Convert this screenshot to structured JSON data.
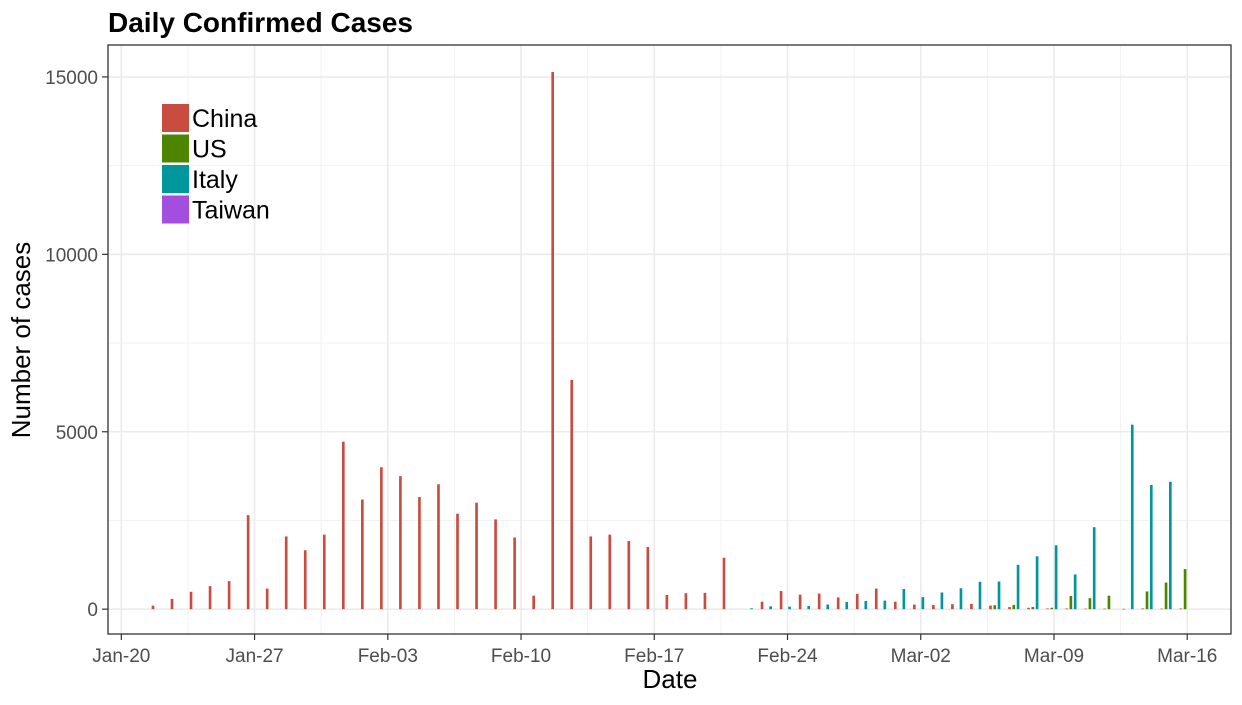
{
  "chart_data": {
    "type": "bar",
    "title": "Daily Confirmed Cases",
    "xlabel": "Date",
    "ylabel": "Number of cases",
    "x_axis": {
      "start": "2020-01-20",
      "end": "2020-03-16",
      "tick_labels": [
        "Jan-20",
        "Jan-27",
        "Feb-03",
        "Feb-10",
        "Feb-17",
        "Feb-24",
        "Mar-02",
        "Mar-09",
        "Mar-16"
      ]
    },
    "y_axis": {
      "ylim": [
        -700,
        15900
      ],
      "ticks": [
        0,
        5000,
        10000,
        15000
      ]
    },
    "grid": true,
    "legend": {
      "position": "top-left"
    },
    "series": [
      {
        "name": "China",
        "color": "#c94c40",
        "points": [
          [
            "2020-01-22",
            100
          ],
          [
            "2020-01-23",
            290
          ],
          [
            "2020-01-24",
            490
          ],
          [
            "2020-01-25",
            650
          ],
          [
            "2020-01-26",
            790
          ],
          [
            "2020-01-27",
            2650
          ],
          [
            "2020-01-28",
            580
          ],
          [
            "2020-01-29",
            2050
          ],
          [
            "2020-01-30",
            1660
          ],
          [
            "2020-01-31",
            2100
          ],
          [
            "2020-02-01",
            4720
          ],
          [
            "2020-02-02",
            3090
          ],
          [
            "2020-02-03",
            4000
          ],
          [
            "2020-02-04",
            3750
          ],
          [
            "2020-02-05",
            3160
          ],
          [
            "2020-02-06",
            3520
          ],
          [
            "2020-02-07",
            2690
          ],
          [
            "2020-02-08",
            3000
          ],
          [
            "2020-02-09",
            2530
          ],
          [
            "2020-02-10",
            2020
          ],
          [
            "2020-02-11",
            380
          ],
          [
            "2020-02-12",
            15140
          ],
          [
            "2020-02-13",
            6460
          ],
          [
            "2020-02-14",
            2050
          ],
          [
            "2020-02-15",
            2100
          ],
          [
            "2020-02-16",
            1920
          ],
          [
            "2020-02-17",
            1750
          ],
          [
            "2020-02-18",
            400
          ],
          [
            "2020-02-19",
            450
          ],
          [
            "2020-02-20",
            460
          ],
          [
            "2020-02-21",
            1450
          ],
          [
            "2020-02-23",
            210
          ],
          [
            "2020-02-24",
            510
          ],
          [
            "2020-02-25",
            410
          ],
          [
            "2020-02-26",
            440
          ],
          [
            "2020-02-27",
            330
          ],
          [
            "2020-02-28",
            430
          ],
          [
            "2020-02-29",
            580
          ],
          [
            "2020-03-01",
            210
          ],
          [
            "2020-03-02",
            130
          ],
          [
            "2020-03-03",
            120
          ],
          [
            "2020-03-04",
            140
          ],
          [
            "2020-03-05",
            150
          ],
          [
            "2020-03-06",
            100
          ],
          [
            "2020-03-07",
            60
          ],
          [
            "2020-03-08",
            40
          ],
          [
            "2020-03-09",
            20
          ],
          [
            "2020-03-10",
            20
          ],
          [
            "2020-03-11",
            15
          ],
          [
            "2020-03-12",
            15
          ],
          [
            "2020-03-13",
            10
          ],
          [
            "2020-03-14",
            20
          ],
          [
            "2020-03-15",
            15
          ],
          [
            "2020-03-16",
            20
          ]
        ]
      },
      {
        "name": "US",
        "color": "#4e8500",
        "points": [
          [
            "2020-03-06",
            110
          ],
          [
            "2020-03-07",
            120
          ],
          [
            "2020-03-08",
            60
          ],
          [
            "2020-03-09",
            40
          ],
          [
            "2020-03-10",
            370
          ],
          [
            "2020-03-11",
            310
          ],
          [
            "2020-03-12",
            380
          ],
          [
            "2020-03-14",
            500
          ],
          [
            "2020-03-15",
            750
          ],
          [
            "2020-03-16",
            1130
          ]
        ]
      },
      {
        "name": "Italy",
        "color": "#00979c",
        "points": [
          [
            "2020-02-22",
            25
          ],
          [
            "2020-02-23",
            80
          ],
          [
            "2020-02-24",
            70
          ],
          [
            "2020-02-25",
            90
          ],
          [
            "2020-02-26",
            130
          ],
          [
            "2020-02-27",
            200
          ],
          [
            "2020-02-28",
            230
          ],
          [
            "2020-02-29",
            240
          ],
          [
            "2020-03-01",
            570
          ],
          [
            "2020-03-02",
            340
          ],
          [
            "2020-03-03",
            470
          ],
          [
            "2020-03-04",
            590
          ],
          [
            "2020-03-05",
            770
          ],
          [
            "2020-03-06",
            780
          ],
          [
            "2020-03-07",
            1250
          ],
          [
            "2020-03-08",
            1490
          ],
          [
            "2020-03-09",
            1800
          ],
          [
            "2020-03-10",
            980
          ],
          [
            "2020-03-11",
            2310
          ],
          [
            "2020-03-13",
            5200
          ],
          [
            "2020-03-14",
            3500
          ],
          [
            "2020-03-15",
            3590
          ]
        ]
      },
      {
        "name": "Taiwan",
        "color": "#a24fe0",
        "points": []
      }
    ]
  }
}
